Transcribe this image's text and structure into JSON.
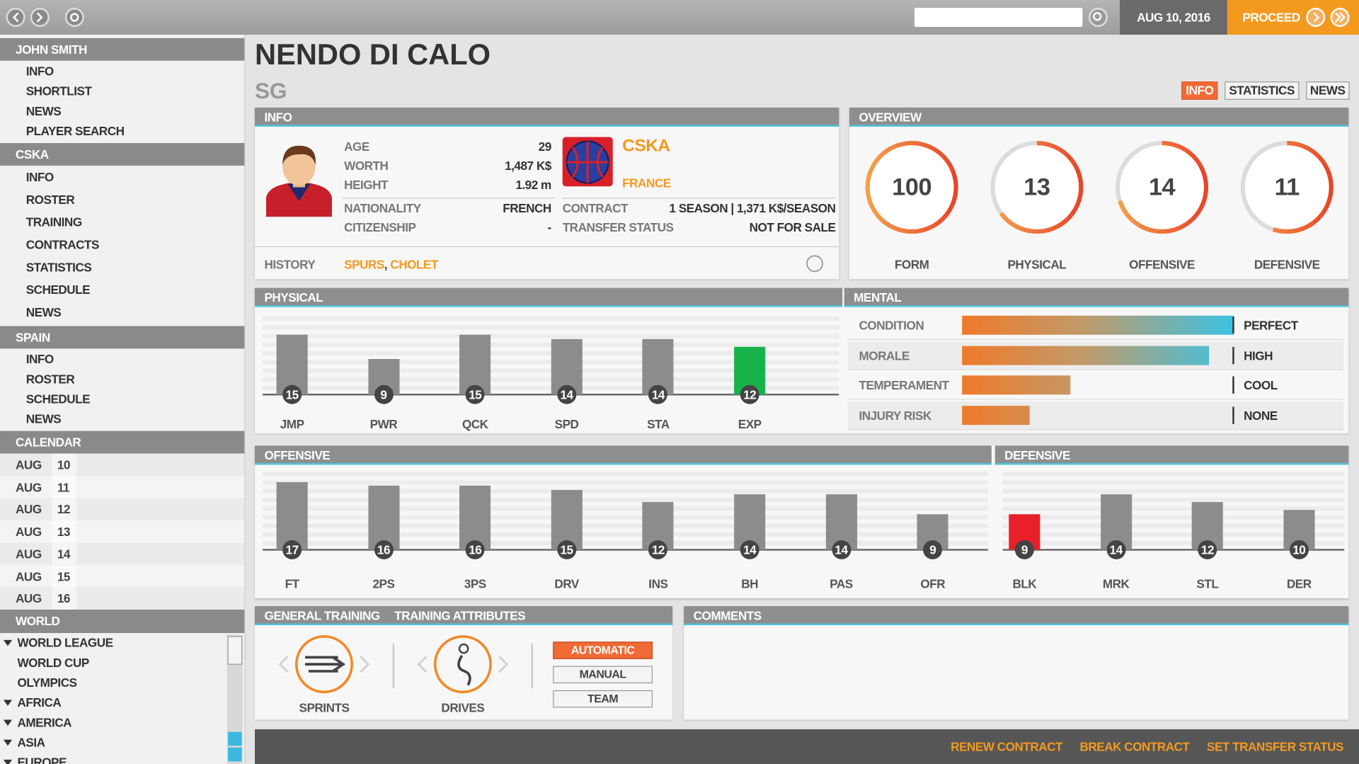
{
  "top_bar": {
    "date": "AUG 10, 2016",
    "proceed": "PROCEED"
  },
  "sidebar": {
    "sections": [
      {
        "title": "JOHN SMITH",
        "items": [
          "INFO",
          "SHORTLIST",
          "NEWS",
          "PLAYER SEARCH"
        ]
      },
      {
        "title": "CSKA",
        "items": [
          "INFO",
          "ROSTER",
          "TRAINING",
          "CONTRACTS",
          "STATISTICS",
          "SCHEDULE",
          "NEWS"
        ]
      },
      {
        "title": "SPAIN",
        "items": [
          "INFO",
          "ROSTER",
          "SCHEDULE",
          "NEWS"
        ]
      }
    ],
    "calendar": {
      "title": "CALENDAR",
      "days": [
        {
          "month": "AUG",
          "day": 10
        },
        {
          "month": "AUG",
          "day": 11
        },
        {
          "month": "AUG",
          "day": 12
        },
        {
          "month": "AUG",
          "day": 13
        },
        {
          "month": "AUG",
          "day": 14
        },
        {
          "month": "AUG",
          "day": 15
        },
        {
          "month": "AUG",
          "day": 16
        }
      ]
    },
    "world": {
      "title": "WORLD",
      "items": [
        {
          "label": "WORLD LEAGUE",
          "children": [
            "WORLD CUP",
            "OLYMPICS"
          ]
        },
        {
          "label": "AFRICA"
        },
        {
          "label": "AMERICA"
        },
        {
          "label": "ASIA"
        },
        {
          "label": "EUROPE"
        }
      ]
    }
  },
  "player": {
    "name": "NENDO DI CALO",
    "position": "SG",
    "tabs": [
      "INFO",
      "STATISTICS",
      "NEWS"
    ],
    "active_tab": 0
  },
  "info": {
    "title": "INFO",
    "personal": [
      {
        "label": "AGE",
        "value": 29
      },
      {
        "label": "WORTH",
        "value": "1,487 K$"
      },
      {
        "label": "HEIGHT",
        "value": "1.92 m"
      },
      {
        "label": "NATIONALITY",
        "value": "FRENCH"
      },
      {
        "label": "CITIZENSHIP",
        "value": "-"
      }
    ],
    "club": "CSKA",
    "country": "FRANCE",
    "contract": [
      {
        "label": "CONTRACT",
        "value": "1 SEASON | 1,371 K$/SEASON"
      },
      {
        "label": "TRANSFER STATUS",
        "value": "NOT FOR SALE"
      }
    ],
    "history": {
      "label": "HISTORY",
      "clubs": [
        "SPURS",
        "CHOLET"
      ],
      "separator": ", "
    }
  },
  "overview": {
    "title": "OVERVIEW",
    "ratings": [
      {
        "label": "FORM",
        "value": 100,
        "range": [
          0,
          100
        ]
      },
      {
        "label": "PHYSICAL",
        "value": 13,
        "range": [
          0,
          20
        ]
      },
      {
        "label": "OFFENSIVE",
        "value": 14,
        "range": [
          0,
          20
        ]
      },
      {
        "label": "DEFENSIVE",
        "value": 11,
        "range": [
          0,
          20
        ]
      }
    ]
  },
  "physical": {
    "title": "PHYSICAL",
    "ylim": [
      0,
      20
    ],
    "color": "#8c8c8c",
    "attributes": [
      {
        "label": "JMP",
        "value": 15
      },
      {
        "label": "PWR",
        "value": 9
      },
      {
        "label": "QCK",
        "value": 15
      },
      {
        "label": "SPD",
        "value": 14
      },
      {
        "label": "STA",
        "value": 14
      },
      {
        "label": "EXP",
        "value": 12,
        "color": "#17b34a"
      }
    ]
  },
  "mental": {
    "title": "MENTAL",
    "xlim": [
      0,
      100
    ],
    "rows": [
      {
        "label": "CONDITION",
        "value": 100,
        "level": "PERFECT"
      },
      {
        "label": "MORALE",
        "value": 91,
        "level": "HIGH"
      },
      {
        "label": "TEMPERAMENT",
        "value": 40,
        "level": "COOL"
      },
      {
        "label": "INJURY RISK",
        "value": 25,
        "level": "NONE"
      }
    ]
  },
  "offensive": {
    "title": "OFFENSIVE",
    "ylim": [
      0,
      20
    ],
    "color": "#8c8c8c",
    "attributes": [
      {
        "label": "FT",
        "value": 17
      },
      {
        "label": "2PS",
        "value": 16
      },
      {
        "label": "3PS",
        "value": 16
      },
      {
        "label": "DRV",
        "value": 15
      },
      {
        "label": "INS",
        "value": 12
      },
      {
        "label": "BH",
        "value": 14
      },
      {
        "label": "PAS",
        "value": 14
      },
      {
        "label": "OFR",
        "value": 9
      }
    ]
  },
  "defensive": {
    "title": "DEFENSIVE",
    "ylim": [
      0,
      20
    ],
    "color": "#8c8c8c",
    "attributes": [
      {
        "label": "BLK",
        "value": 9,
        "color": "#e8202a"
      },
      {
        "label": "MRK",
        "value": 14
      },
      {
        "label": "STL",
        "value": 12
      },
      {
        "label": "DER",
        "value": 10
      }
    ]
  },
  "training": {
    "titles": [
      "GENERAL TRAINING",
      "TRAINING ATTRIBUTES"
    ],
    "drills": [
      "SPRINTS",
      "DRIVES"
    ],
    "modes": [
      "AUTOMATIC",
      "MANUAL",
      "TEAM"
    ],
    "selected_mode": 0
  },
  "comments": {
    "title": "COMMENTS"
  },
  "actions": [
    "RENEW CONTRACT",
    "BREAK CONTRACT",
    "SET TRANSFER STATUS"
  ]
}
